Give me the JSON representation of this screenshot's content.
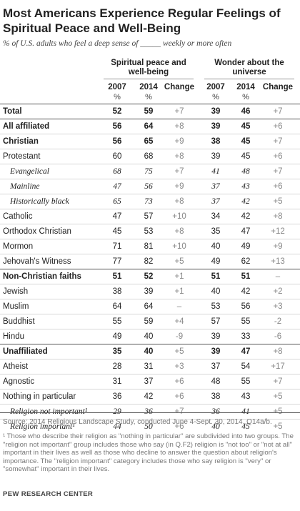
{
  "title": "Most Americans Experience Regular Feelings of Spiritual Peace and Well-Being",
  "subtitle": "% of U.S. adults who feel a deep sense of _____ weekly or more often",
  "groups": {
    "g1": "Spiritual peace and well-being",
    "g2": "Wonder about the universe"
  },
  "columns": [
    "2007",
    "2014",
    "Change",
    "2007",
    "2014",
    "Change"
  ],
  "pct_sign": "%",
  "rows": [
    {
      "label": "Total",
      "style": "bold sec lv1",
      "v": [
        "52",
        "59",
        "+7",
        "39",
        "46",
        "+7"
      ]
    },
    {
      "label": "All affiliated",
      "style": "bold sec lv1",
      "v": [
        "56",
        "64",
        "+8",
        "39",
        "45",
        "+6"
      ]
    },
    {
      "label": "Christian",
      "style": "bold lv1",
      "v": [
        "56",
        "65",
        "+9",
        "38",
        "45",
        "+7"
      ]
    },
    {
      "label": "Protestant",
      "style": "lv1",
      "v": [
        "60",
        "68",
        "+8",
        "39",
        "45",
        "+6"
      ]
    },
    {
      "label": "Evangelical",
      "style": "lv2 it",
      "v": [
        "68",
        "75",
        "+7",
        "41",
        "48",
        "+7"
      ]
    },
    {
      "label": "Mainline",
      "style": "lv2 it",
      "v": [
        "47",
        "56",
        "+9",
        "37",
        "43",
        "+6"
      ]
    },
    {
      "label": "Historically black",
      "style": "lv2 it",
      "v": [
        "65",
        "73",
        "+8",
        "37",
        "42",
        "+5"
      ]
    },
    {
      "label": "Catholic",
      "style": "lv1",
      "v": [
        "47",
        "57",
        "+10",
        "34",
        "42",
        "+8"
      ]
    },
    {
      "label": "Orthodox Christian",
      "style": "lv1",
      "v": [
        "45",
        "53",
        "+8",
        "35",
        "47",
        "+12"
      ]
    },
    {
      "label": "Mormon",
      "style": "lv1",
      "v": [
        "71",
        "81",
        "+10",
        "40",
        "49",
        "+9"
      ]
    },
    {
      "label": "Jehovah's Witness",
      "style": "lv1",
      "v": [
        "77",
        "82",
        "+5",
        "49",
        "62",
        "+13"
      ]
    },
    {
      "label": "Non-Christian faiths",
      "style": "bold sec lv1",
      "v": [
        "51",
        "52",
        "+1",
        "51",
        "51",
        "–"
      ]
    },
    {
      "label": "Jewish",
      "style": "lv1",
      "v": [
        "38",
        "39",
        "+1",
        "40",
        "42",
        "+2"
      ]
    },
    {
      "label": "Muslim",
      "style": "lv1",
      "v": [
        "64",
        "64",
        "–",
        "53",
        "56",
        "+3"
      ]
    },
    {
      "label": "Buddhist",
      "style": "lv1",
      "v": [
        "55",
        "59",
        "+4",
        "57",
        "55",
        "-2"
      ]
    },
    {
      "label": "Hindu",
      "style": "lv1",
      "v": [
        "49",
        "40",
        "-9",
        "39",
        "33",
        "-6"
      ]
    },
    {
      "label": "Unaffiliated",
      "style": "bold sec lv1",
      "v": [
        "35",
        "40",
        "+5",
        "39",
        "47",
        "+8"
      ]
    },
    {
      "label": "Atheist",
      "style": "lv1",
      "v": [
        "28",
        "31",
        "+3",
        "37",
        "54",
        "+17"
      ]
    },
    {
      "label": "Agnostic",
      "style": "lv1",
      "v": [
        "31",
        "37",
        "+6",
        "48",
        "55",
        "+7"
      ]
    },
    {
      "label": "Nothing in particular",
      "style": "lv1",
      "v": [
        "36",
        "42",
        "+6",
        "38",
        "43",
        "+5"
      ]
    },
    {
      "label": "Religion not important¹",
      "style": "lv2 it",
      "v": [
        "29",
        "36",
        "+7",
        "36",
        "41",
        "+5"
      ]
    },
    {
      "label": "Religion important¹",
      "style": "lv2 it",
      "v": [
        "44",
        "50",
        "+6",
        "40",
        "45",
        "+5"
      ]
    }
  ],
  "source": "Source: 2014 Religious Landscape Study, conducted June 4-Sept. 30, 2014. Q14a/b.",
  "note": "¹ Those who describe their religion as \"nothing in particular\" are subdivided into two groups. The \"religion not important\" group includes those who say (in Q.F2) religion is \"not too\" or \"not at all\" important in their lives as well as those who decline to answer the question about religion's importance. The \"religion important\" category includes those who say religion is \"very\" or \"somewhat\" important in their lives.",
  "org": "PEW RESEARCH CENTER"
}
